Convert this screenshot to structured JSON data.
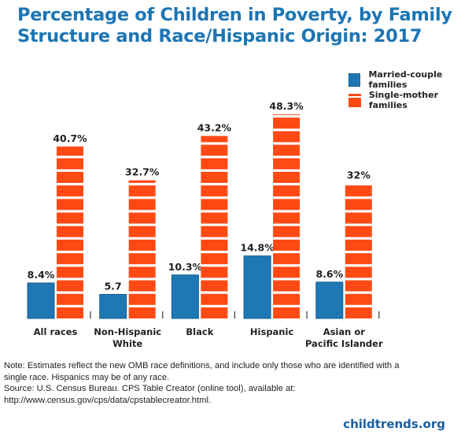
{
  "title_line1": "Percentage of Children in Poverty, by Family",
  "title_line2": "Structure and Race/Hispanic Origin: 2017",
  "legend": [
    {
      "label": "Married-couple families",
      "color": "#1f78b4"
    },
    {
      "label": "Single-mother families",
      "color": "#ff4a14"
    }
  ],
  "note_line1": "Note: Estimates reflect the new OMB race definitions, and include only those who are identified with a",
  "note_line2": "single race. Hispanics may be of any race.",
  "source_line1": "Source:  U.S. Census Bureau. CPS Table Creator (online tool), available at:",
  "source_line2": "http://www.census.gov/cps/data/cpstablecreator.html.",
  "brand": "childtrends.org",
  "chart_data": {
    "type": "bar",
    "title": "Percentage of Children in Poverty, by Family Structure and Race/Hispanic Origin: 2017",
    "xlabel": "",
    "ylabel": "",
    "ylim": [
      0,
      50
    ],
    "grid": false,
    "legend_position": "top-right",
    "categories": [
      [
        "All races"
      ],
      [
        "Non-Hispanic",
        "White"
      ],
      [
        "Black"
      ],
      [
        "Hispanic"
      ],
      [
        "Asian or",
        "Pacific Islander"
      ]
    ],
    "series": [
      {
        "name": "Married-couple families",
        "color": "#1f78b4",
        "values": [
          8.4,
          5.7,
          10.3,
          14.8,
          8.6
        ],
        "labels": [
          "8.4%",
          "5.7",
          "10.3%",
          "14.8%",
          "8.6%"
        ]
      },
      {
        "name": "Single-mother families",
        "color": "#ff4a14",
        "values": [
          40.7,
          32.7,
          43.2,
          48.3,
          32
        ],
        "labels": [
          "40.7%",
          "32.7%",
          "43.2%",
          "48.3%",
          "32%"
        ]
      }
    ]
  }
}
